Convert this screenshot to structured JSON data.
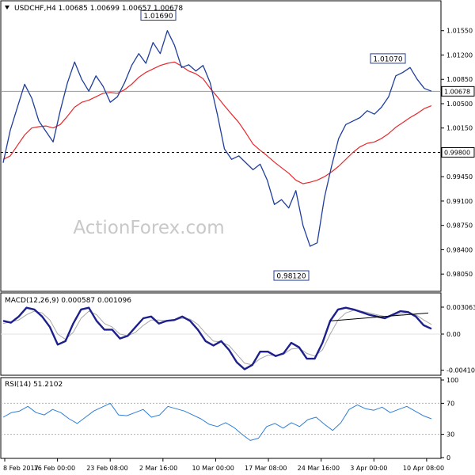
{
  "chart_data": [
    {
      "panel": "price",
      "type": "line",
      "title": "USDCHF,H4  1.00685 1.00699 1.00657 1.00678",
      "watermark": "ActionForex.com",
      "ylim": [
        0.9787,
        1.019
      ],
      "yticks": [
        "1.01550",
        "1.01200",
        "1.00850",
        "1.00500",
        "1.00150",
        "0.99450",
        "0.99100",
        "0.98750",
        "0.98400",
        "0.98050"
      ],
      "current_price_label": "1.00678",
      "current_price": 1.00678,
      "support_level_label": "0.99800",
      "support_level": 0.998,
      "callouts": [
        {
          "text": "1.01690",
          "price": 1.0169
        },
        {
          "text": "1.01070",
          "price": 1.0107
        },
        {
          "text": "0.98120",
          "price": 0.9812
        }
      ],
      "series": [
        {
          "name": "price",
          "color": "#1f3e9c",
          "values": [
            0.9965,
            1.0012,
            1.0045,
            1.0078,
            1.0058,
            1.0025,
            1.001,
            0.9995,
            1.004,
            1.008,
            1.011,
            1.0085,
            1.0068,
            1.009,
            1.0075,
            1.0052,
            1.006,
            1.008,
            1.0105,
            1.0122,
            1.0108,
            1.0138,
            1.0122,
            1.0155,
            1.0134,
            1.0102,
            1.0106,
            1.0097,
            1.0105,
            1.008,
            1.0035,
            0.9985,
            0.997,
            0.9975,
            0.9965,
            0.9955,
            0.9963,
            0.994,
            0.9905,
            0.9912,
            0.99,
            0.9925,
            0.9875,
            0.9845,
            0.985,
            0.9915,
            0.996,
            1.0,
            1.002,
            1.0025,
            1.003,
            1.004,
            1.0035,
            1.0045,
            1.006,
            1.009,
            1.0095,
            1.0102,
            1.0085,
            1.0072,
            1.0068
          ]
        },
        {
          "name": "moving average",
          "color": "#e8282d",
          "values": [
            0.997,
            0.9975,
            0.999,
            1.0005,
            1.0015,
            1.0017,
            1.0018,
            1.0015,
            1.002,
            1.0032,
            1.0045,
            1.0052,
            1.0055,
            1.006,
            1.0065,
            1.0066,
            1.0065,
            1.007,
            1.0078,
            1.0088,
            1.0095,
            1.01,
            1.0105,
            1.0108,
            1.011,
            1.0104,
            1.0097,
            1.0093,
            1.0086,
            1.0072,
            1.006,
            1.0047,
            1.0035,
            1.0023,
            1.0008,
            0.9992,
            0.9983,
            0.9975,
            0.9966,
            0.9958,
            0.995,
            0.994,
            0.9935,
            0.9937,
            0.994,
            0.9945,
            0.9952,
            0.996,
            0.997,
            0.998,
            0.9988,
            0.9993,
            0.9995,
            1.0,
            1.0007,
            1.0016,
            1.0023,
            1.003,
            1.0036,
            1.0043,
            1.0047
          ]
        }
      ]
    },
    {
      "panel": "macd",
      "type": "line",
      "title": "MACD(12,26,9) 0.000587 0.001096",
      "ylim": [
        -0.0045,
        0.0045
      ],
      "yticks": [
        "0.003063",
        "0.00",
        "-0.004104"
      ],
      "trendline_color": "#000000",
      "series": [
        {
          "name": "MACD",
          "color": "#1c1f8c",
          "values": [
            0.0015,
            0.0013,
            0.002,
            0.003,
            0.0028,
            0.002,
            0.0008,
            -0.0012,
            -0.0008,
            0.0012,
            0.0028,
            0.003,
            0.0015,
            0.0005,
            0.0005,
            -0.0005,
            -0.0002,
            0.0008,
            0.0018,
            0.002,
            0.0012,
            0.0015,
            0.0016,
            0.002,
            0.0015,
            0.0005,
            -0.0008,
            -0.0013,
            -0.0008,
            -0.0018,
            -0.0032,
            -0.004,
            -0.0035,
            -0.002,
            -0.002,
            -0.0025,
            -0.0022,
            -0.001,
            -0.0015,
            -0.0028,
            -0.0028,
            -0.001,
            0.0015,
            0.0028,
            0.003,
            0.0028,
            0.0025,
            0.0022,
            0.002,
            0.0018,
            0.0022,
            0.0026,
            0.0025,
            0.002,
            0.001,
            0.0006
          ]
        },
        {
          "name": "signal",
          "color": "#a8a8a8",
          "values": [
            0.0012,
            0.0014,
            0.0016,
            0.0022,
            0.0026,
            0.0024,
            0.0016,
            0.0,
            -0.0006,
            0.0002,
            0.0018,
            0.0026,
            0.0022,
            0.0012,
            0.0008,
            0.0,
            -0.0002,
            0.0002,
            0.001,
            0.0016,
            0.0016,
            0.0015,
            0.0016,
            0.0018,
            0.0017,
            0.0011,
            0.0001,
            -0.0008,
            -0.0009,
            -0.0013,
            -0.0023,
            -0.0033,
            -0.0035,
            -0.0028,
            -0.0024,
            -0.0024,
            -0.0023,
            -0.0017,
            -0.0016,
            -0.0022,
            -0.0025,
            -0.0018,
            0.0,
            0.0016,
            0.0024,
            0.0027,
            0.0026,
            0.0024,
            0.0022,
            0.002,
            0.0021,
            0.0023,
            0.0024,
            0.0022,
            0.0016,
            0.0011
          ]
        }
      ]
    },
    {
      "panel": "rsi",
      "type": "line",
      "title": "RSI(14) 51.2102",
      "ylim": [
        0,
        100
      ],
      "yticks": [
        "100",
        "70",
        "30",
        "0"
      ],
      "levels": [
        70,
        30
      ],
      "series": [
        {
          "name": "RSI",
          "color": "#2f7fd6",
          "values": [
            52,
            58,
            60,
            66,
            58,
            55,
            62,
            58,
            50,
            44,
            52,
            60,
            65,
            70,
            55,
            54,
            58,
            62,
            52,
            55,
            66,
            63,
            60,
            55,
            50,
            43,
            40,
            45,
            39,
            30,
            22,
            25,
            40,
            44,
            38,
            45,
            40,
            49,
            52,
            43,
            35,
            45,
            62,
            68,
            63,
            61,
            65,
            58,
            62,
            66,
            60,
            54,
            50
          ]
        }
      ]
    }
  ],
  "x_axis": {
    "labels": [
      "8 Feb 2017",
      "16 Feb 00:00",
      "23 Feb 08:00",
      "2 Mar 16:00",
      "10 Mar 00:00",
      "17 Mar 08:00",
      "24 Mar 16:00",
      "3 Apr 00:00",
      "10 Apr 08:00"
    ]
  }
}
